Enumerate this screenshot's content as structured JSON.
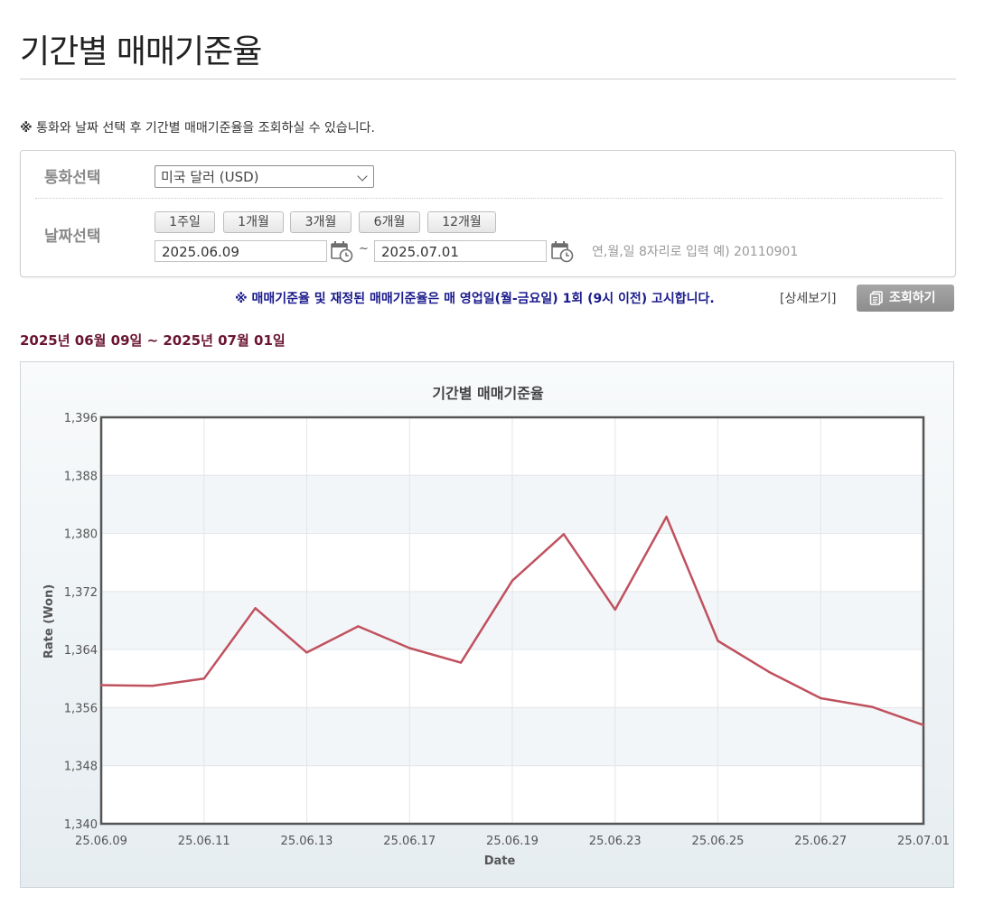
{
  "page": {
    "title": "기간별 매매기준율",
    "notice_mark": "※",
    "notice_text": " 통화와 날짜 선택 후 기간별 매매기준율을 조회하실 수 있습니다."
  },
  "form": {
    "currency_label": "통화선택",
    "currency_selected": "미국 달러 (USD)",
    "date_label": "날짜선택",
    "period_buttons": [
      "1주일",
      "1개월",
      "3개월",
      "6개월",
      "12개월"
    ],
    "start_date": "2025.06.09",
    "end_date": "2025.07.01",
    "range_separator": "~",
    "date_hint": "연,월,일 8자리로 입력 예) 20110901"
  },
  "info": {
    "text": "※ 매매기준율 및 재정된 매매기준율은 매 영업일(월-금요일) 1회 (9시 이전) 고시합니다.",
    "detail_link": "[상세보기]",
    "search_button": "조회하기"
  },
  "range_label": "2025년 06월 09일 ~ 2025년 07월 01일",
  "colors": {
    "line": "#c0515f",
    "range_label": "#6a1432",
    "info_text": "#1a1a8c"
  },
  "chart_data": {
    "type": "line",
    "title": "기간별 매매기준율",
    "xlabel": "Date",
    "ylabel": "Rate (Won)",
    "ylim": [
      1340,
      1396
    ],
    "yticks": [
      1340,
      1348,
      1356,
      1364,
      1372,
      1380,
      1388,
      1396
    ],
    "ytick_labels": [
      "1,340",
      "1,348",
      "1,356",
      "1,364",
      "1,372",
      "1,380",
      "1,388",
      "1,396"
    ],
    "x": [
      "25.06.09",
      "25.06.10",
      "25.06.11",
      "25.06.12",
      "25.06.13",
      "25.06.16",
      "25.06.17",
      "25.06.18",
      "25.06.19",
      "25.06.20",
      "25.06.23",
      "25.06.24",
      "25.06.25",
      "25.06.26",
      "25.06.27",
      "25.06.30",
      "25.07.01"
    ],
    "xtick_labels": [
      "25.06.09",
      "25.06.11",
      "25.06.13",
      "25.06.17",
      "25.06.19",
      "25.06.23",
      "25.06.25",
      "25.06.27",
      "25.07.01"
    ],
    "series": [
      {
        "values": [
          1359.1,
          1359.0,
          1360.0,
          1369.7,
          1363.6,
          1367.2,
          1364.2,
          1362.2,
          1373.5,
          1379.9,
          1369.5,
          1382.3,
          1365.2,
          1360.9,
          1357.3,
          1356.1,
          1353.6
        ]
      }
    ],
    "grid": true,
    "legend": "none"
  }
}
